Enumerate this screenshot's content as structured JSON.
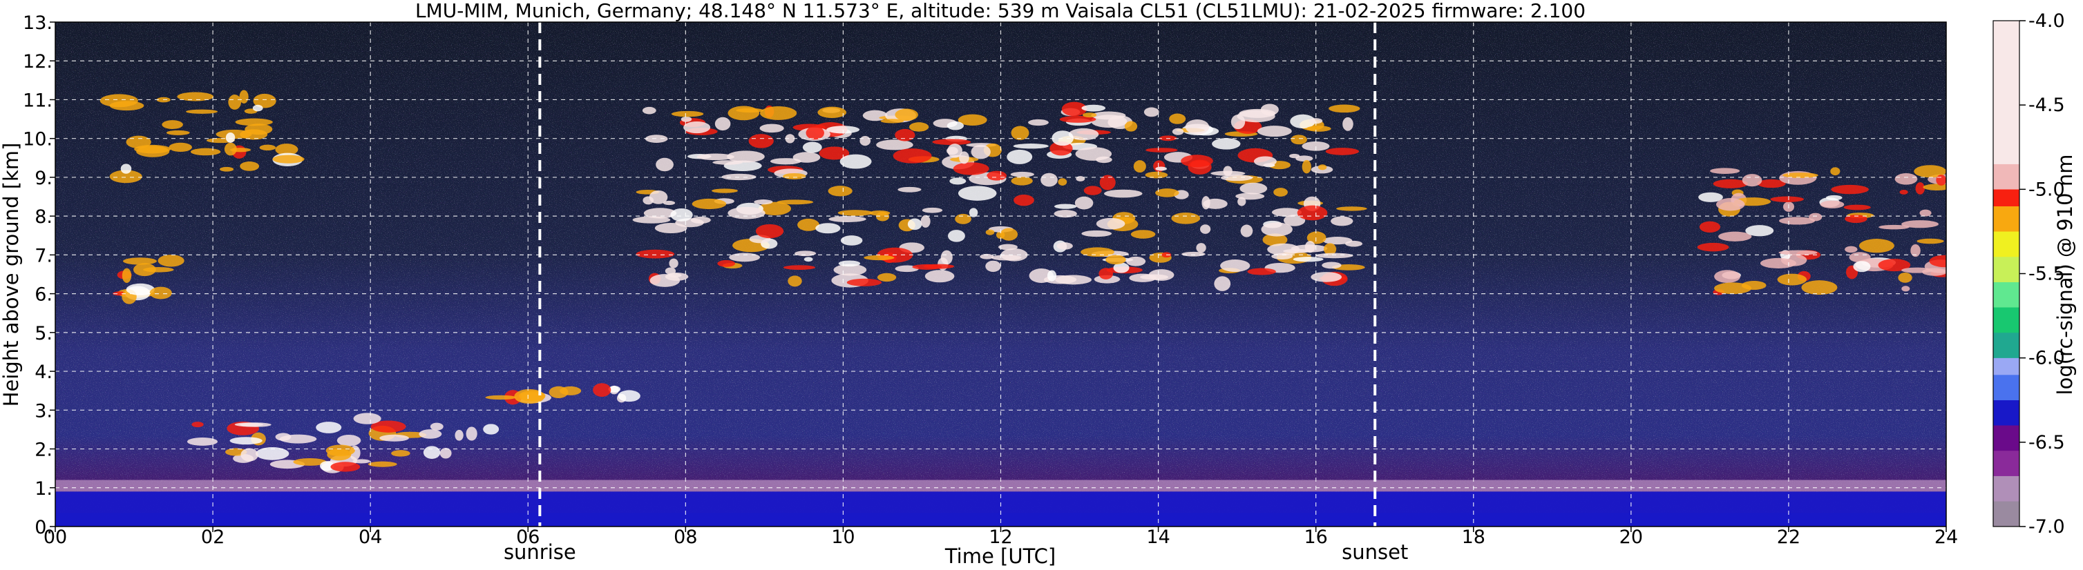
{
  "chart_data": {
    "type": "heatmap",
    "title": "LMU-MIM, Munich, Germany; 48.148° N 11.573° E, altitude: 539 m    Vaisala CL51 (CL51LMU): 21-02-2025    firmware: 2.100",
    "xlabel": "Time [UTC]",
    "ylabel": "Height above ground [km]",
    "xlim": [
      0,
      24
    ],
    "ylim": [
      0,
      13
    ],
    "x_ticks": [
      {
        "value": 0,
        "label": "00"
      },
      {
        "value": 2,
        "label": "02"
      },
      {
        "value": 4,
        "label": "04"
      },
      {
        "value": 6,
        "label": "06"
      },
      {
        "value": 8,
        "label": "08"
      },
      {
        "value": 10,
        "label": "10"
      },
      {
        "value": 12,
        "label": "12"
      },
      {
        "value": 14,
        "label": "14"
      },
      {
        "value": 16,
        "label": "16"
      },
      {
        "value": 18,
        "label": "18"
      },
      {
        "value": 20,
        "label": "20"
      },
      {
        "value": 22,
        "label": "22"
      },
      {
        "value": 24,
        "label": "24"
      }
    ],
    "y_ticks": [
      {
        "value": 0,
        "label": "0."
      },
      {
        "value": 1,
        "label": "1."
      },
      {
        "value": 2,
        "label": "2."
      },
      {
        "value": 3,
        "label": "3."
      },
      {
        "value": 4,
        "label": "4."
      },
      {
        "value": 5,
        "label": "5."
      },
      {
        "value": 6,
        "label": "6."
      },
      {
        "value": 7,
        "label": "7."
      },
      {
        "value": 8,
        "label": "8."
      },
      {
        "value": 9,
        "label": "9."
      },
      {
        "value": 10,
        "label": "10."
      },
      {
        "value": 11,
        "label": "11."
      },
      {
        "value": 12,
        "label": "12."
      },
      {
        "value": 13,
        "label": "13."
      }
    ],
    "grid": true,
    "annotations": [
      {
        "name": "sunrise",
        "x": 6.15,
        "label": "sunrise"
      },
      {
        "name": "sunset",
        "x": 16.75,
        "label": "sunset"
      }
    ],
    "colorbar": {
      "label": "log(rc-signal) @ 910 nm",
      "range": [
        -7.0,
        -4.0
      ],
      "ticks": [
        {
          "value": -4.0,
          "label": "-4.0"
        },
        {
          "value": -4.5,
          "label": "-4.5"
        },
        {
          "value": -5.0,
          "label": "-5.0"
        },
        {
          "value": -5.5,
          "label": "-5.5"
        },
        {
          "value": -6.0,
          "label": "-6.0"
        },
        {
          "value": -6.5,
          "label": "-6.5"
        },
        {
          "value": -7.0,
          "label": "-7.0"
        }
      ],
      "stops": [
        {
          "v": -7.0,
          "color": "#9a8aa0"
        },
        {
          "v": -6.85,
          "color": "#b08fb8"
        },
        {
          "v": -6.7,
          "color": "#8a2a9a"
        },
        {
          "v": -6.55,
          "color": "#6a0a8a"
        },
        {
          "v": -6.4,
          "color": "#1818c8"
        },
        {
          "v": -6.25,
          "color": "#4a72ee"
        },
        {
          "v": -6.1,
          "color": "#9aa8f4"
        },
        {
          "v": -6.0,
          "color": "#20a890"
        },
        {
          "v": -5.85,
          "color": "#18c870"
        },
        {
          "v": -5.7,
          "color": "#60e890"
        },
        {
          "v": -5.55,
          "color": "#c8f058"
        },
        {
          "v": -5.4,
          "color": "#f0f020"
        },
        {
          "v": -5.25,
          "color": "#f8a810"
        },
        {
          "v": -5.1,
          "color": "#f82010"
        },
        {
          "v": -5.0,
          "color": "#f0b8b8"
        },
        {
          "v": -4.85,
          "color": "#f8e8e8"
        },
        {
          "v": -4.0,
          "color": "#ffffff"
        }
      ]
    },
    "features": [
      {
        "name": "boundary-layer",
        "x": [
          0,
          24
        ],
        "y": [
          0,
          0.9
        ],
        "level": -6.3
      },
      {
        "name": "low-cloud-layer",
        "x": [
          1.4,
          5.6
        ],
        "y": [
          1.5,
          2.8
        ],
        "level": -4.1
      },
      {
        "name": "cloud-3-4km",
        "x": [
          5.5,
          7.3
        ],
        "y": [
          3.3,
          3.6
        ],
        "level": -4.1
      },
      {
        "name": "cirrus-morning",
        "x": [
          0.8,
          3.0
        ],
        "y": [
          9.0,
          11.2
        ],
        "level": -5.2
      },
      {
        "name": "cloud-6km",
        "x": [
          0.7,
          1.5
        ],
        "y": [
          5.8,
          7.0
        ],
        "level": -5.2
      },
      {
        "name": "cirrus-midday",
        "x": [
          7.5,
          16.5
        ],
        "y": [
          6.2,
          10.8
        ],
        "level": -4.3
      },
      {
        "name": "cirrus-evening",
        "x": [
          21.0,
          24.0
        ],
        "y": [
          6.0,
          9.2
        ],
        "level": -4.9
      }
    ]
  }
}
